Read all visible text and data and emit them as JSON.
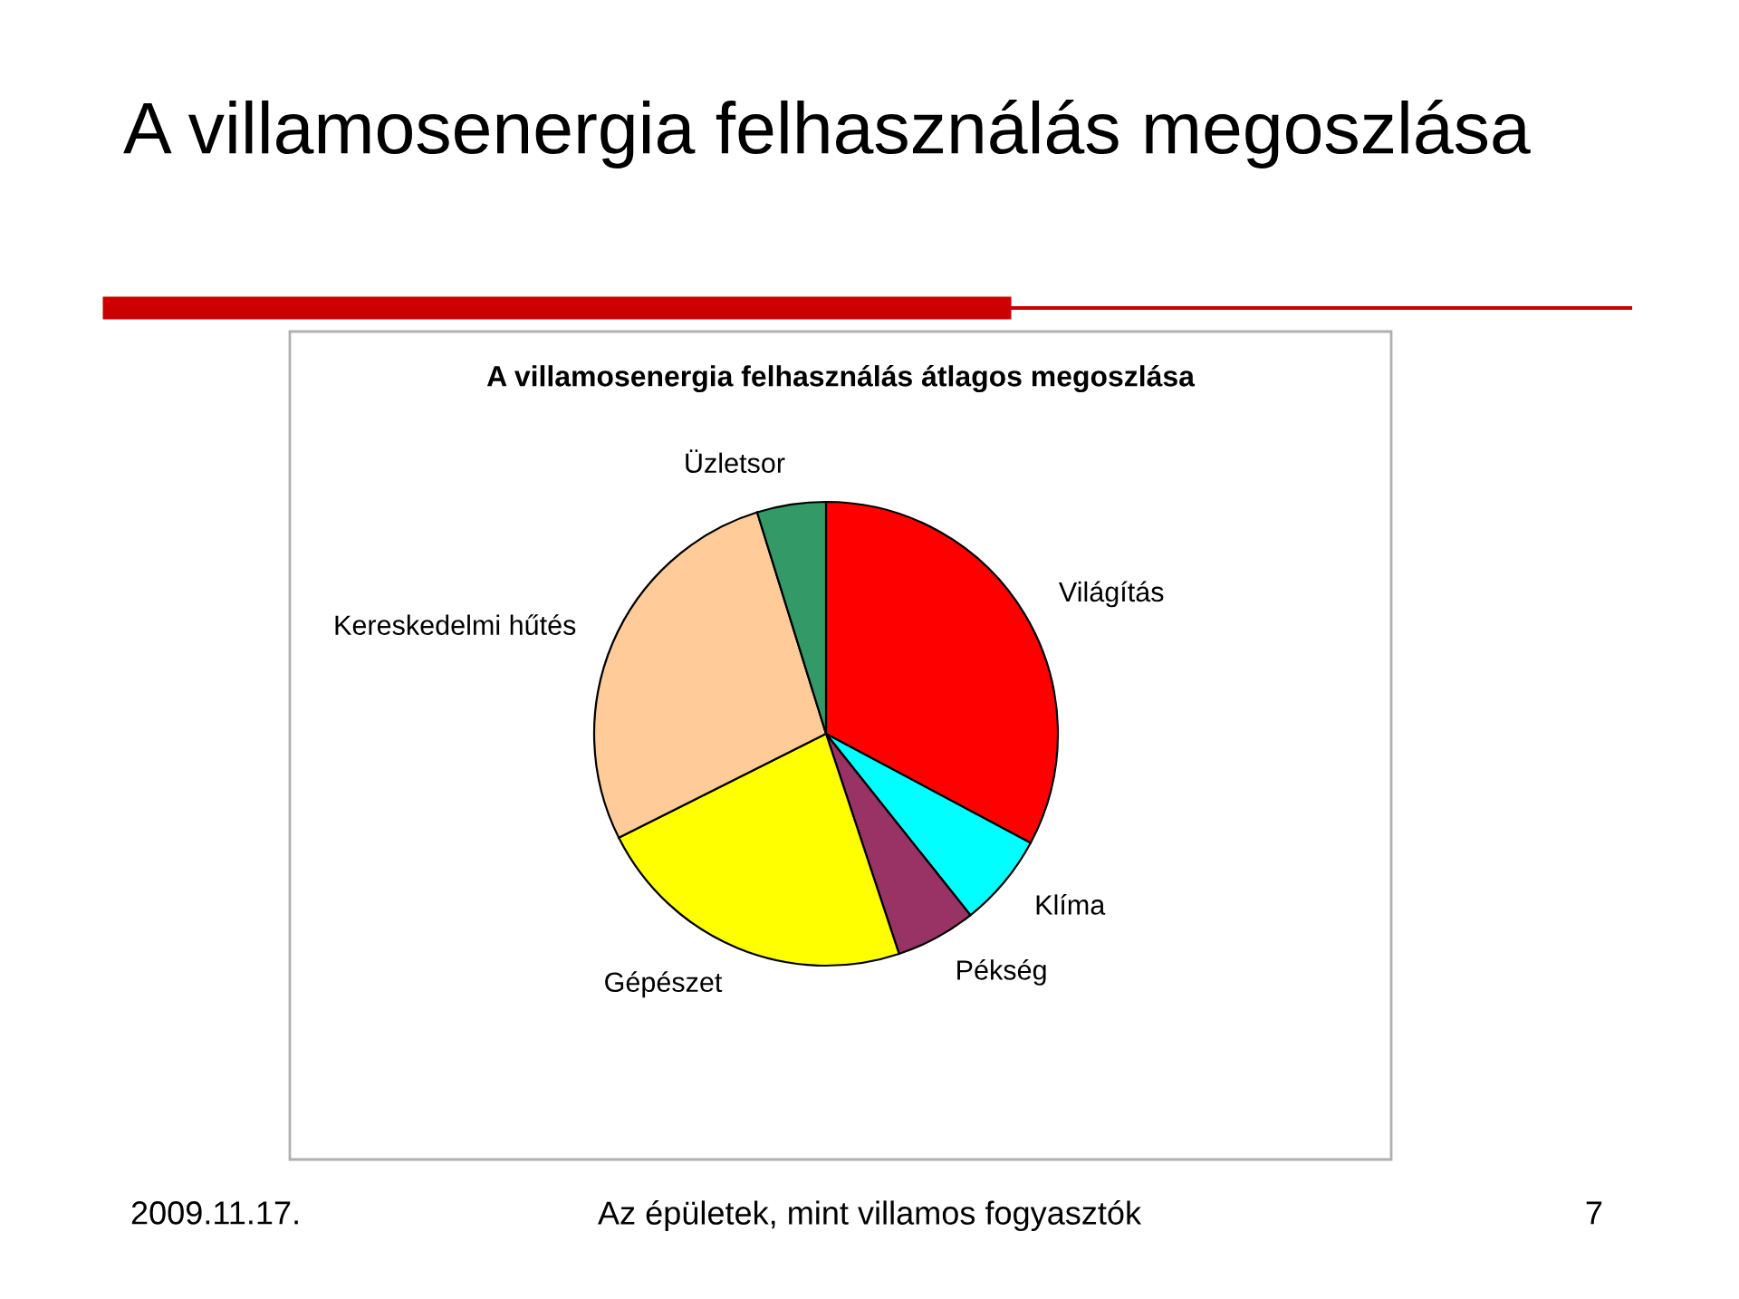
{
  "chart_data": {
    "type": "pie",
    "title": "A villamosenergia felhasználás megoszlása",
    "subtitle": "A villamosenergia felhasználás átlagos megoszlása",
    "categories": [
      "Világítás",
      "Klíma",
      "Pékség",
      "Gépészet",
      "Kereskedelmi hűtés",
      "Üzletsor"
    ],
    "values": [
      32.8,
      6.5,
      5.6,
      22.7,
      27.6,
      4.8
    ],
    "colors": [
      "#ff0000",
      "#00ffff",
      "#993366",
      "#ffff00",
      "#ffcc99",
      "#339966"
    ],
    "legend": false,
    "annotations": [
      "2009.11.17.",
      "Az épületek, mint villamos fogyasztók",
      "7"
    ]
  }
}
